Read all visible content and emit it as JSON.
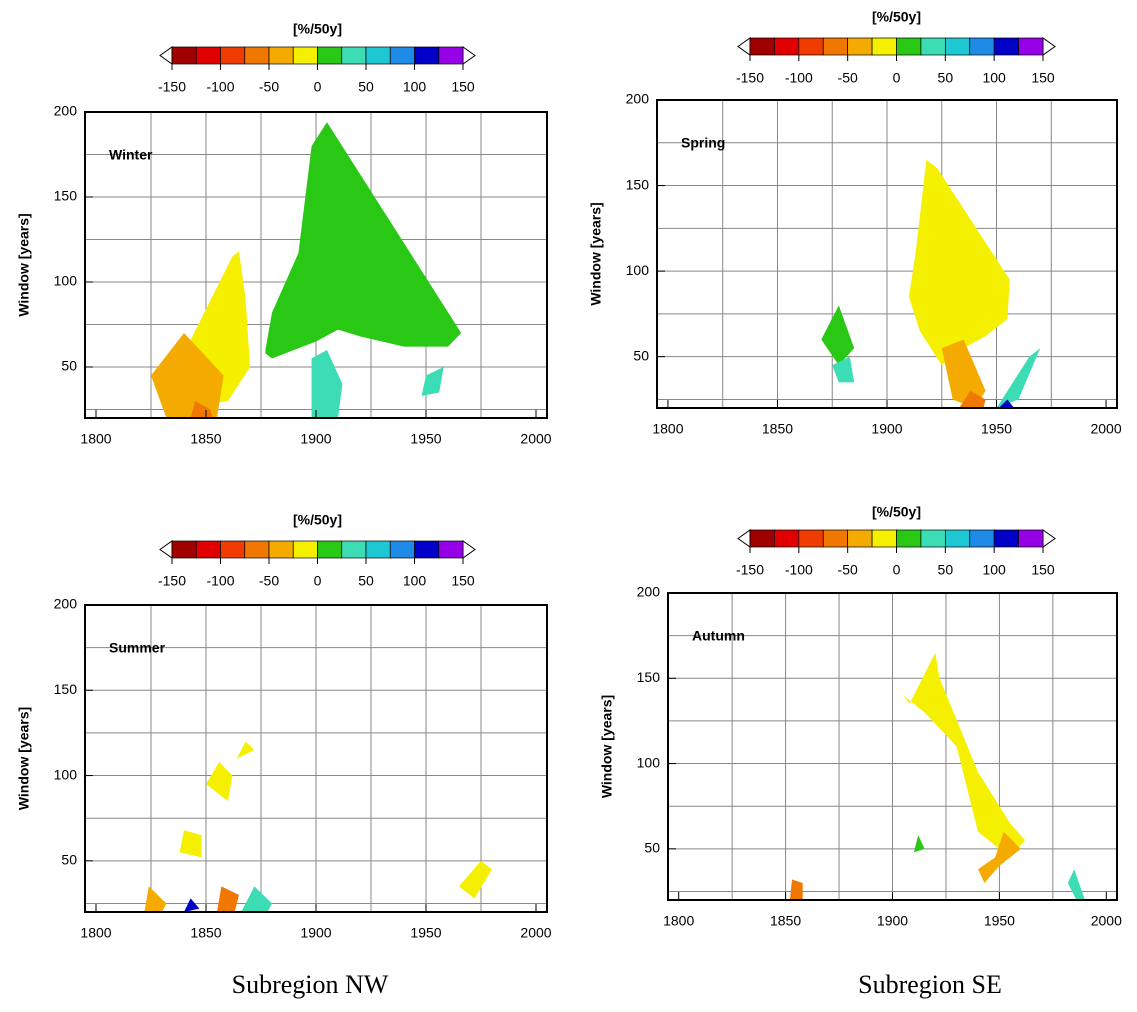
{
  "colorbar": {
    "title": "[%/50y]",
    "lim": [
      -150,
      150
    ],
    "ticks": [
      -150,
      -100,
      -50,
      0,
      50,
      100,
      150
    ],
    "colors": [
      "#a00000",
      "#e00000",
      "#f03c00",
      "#f07800",
      "#f5aa00",
      "#f5f000",
      "#28c814",
      "#3cdcb4",
      "#1ec8d2",
      "#1e8ce6",
      "#0000c8",
      "#9600e6"
    ]
  },
  "captions": [
    "Subregion NW",
    "Subregion SE"
  ],
  "chart_data": [
    {
      "type": "heatmap",
      "label": "Winter",
      "ylabel": "Window [years]",
      "xlim": [
        1795,
        2005
      ],
      "ylim": [
        20,
        200
      ],
      "xticks": [
        1800,
        1850,
        1900,
        1950,
        2000
      ],
      "yticks": [
        50,
        100,
        150,
        200
      ],
      "xgrid": [
        1825,
        1850,
        1875,
        1900,
        1925,
        1950,
        1975
      ],
      "ygrid": [
        25,
        50,
        75,
        100,
        125,
        150,
        175
      ],
      "regions": [
        {
          "value": 10,
          "x": [
            1877,
            1880,
            1892,
            1898,
            1905,
            1966,
            1960,
            1940,
            1920,
            1910,
            1900,
            1880,
            1877
          ],
          "y": [
            60,
            82,
            117,
            180,
            194,
            70,
            62,
            62,
            68,
            72,
            65,
            55,
            58
          ]
        },
        {
          "value": -15,
          "x": [
            1833,
            1862,
            1865,
            1868,
            1870,
            1860,
            1850
          ],
          "y": [
            40,
            115,
            118,
            90,
            50,
            30,
            28
          ]
        },
        {
          "value": -40,
          "x": [
            1825,
            1840,
            1858,
            1855,
            1832
          ],
          "y": [
            45,
            70,
            45,
            20,
            20
          ]
        },
        {
          "value": -75,
          "x": [
            1843,
            1845,
            1852,
            1853
          ],
          "y": [
            20,
            30,
            25,
            20
          ]
        },
        {
          "value": 30,
          "x": [
            1898,
            1905,
            1912,
            1910,
            1898
          ],
          "y": [
            55,
            60,
            40,
            20,
            20
          ]
        },
        {
          "value": 30,
          "x": [
            1950,
            1958,
            1956,
            1948
          ],
          "y": [
            45,
            50,
            35,
            33
          ]
        }
      ]
    },
    {
      "type": "heatmap",
      "label": "Spring",
      "ylabel": "Window [years]",
      "xlim": [
        1795,
        2005
      ],
      "ylim": [
        20,
        200
      ],
      "xticks": [
        1800,
        1850,
        1900,
        1950,
        2000
      ],
      "yticks": [
        50,
        100,
        150,
        200
      ],
      "xgrid": [
        1825,
        1850,
        1875,
        1900,
        1925,
        1950,
        1975
      ],
      "ygrid": [
        25,
        50,
        75,
        100,
        125,
        150,
        175
      ],
      "regions": [
        {
          "value": -15,
          "x": [
            1910,
            1913,
            1918,
            1923,
            1956,
            1955,
            1945,
            1935,
            1925,
            1915
          ],
          "y": [
            85,
            110,
            165,
            160,
            95,
            72,
            62,
            55,
            45,
            65
          ]
        },
        {
          "value": -40,
          "x": [
            1925,
            1935,
            1945,
            1940,
            1930
          ],
          "y": [
            55,
            60,
            30,
            20,
            25
          ]
        },
        {
          "value": -75,
          "x": [
            1933,
            1938,
            1945,
            1944
          ],
          "y": [
            20,
            30,
            25,
            20
          ]
        },
        {
          "value": 10,
          "x": [
            1870,
            1878,
            1885,
            1878
          ],
          "y": [
            60,
            80,
            55,
            45
          ]
        },
        {
          "value": 30,
          "x": [
            1875,
            1883,
            1885,
            1878
          ],
          "y": [
            45,
            50,
            35,
            35
          ]
        },
        {
          "value": 40,
          "x": [
            1950,
            1965,
            1970,
            1960
          ],
          "y": [
            20,
            50,
            55,
            25
          ]
        },
        {
          "value": 110,
          "x": [
            1951,
            1955,
            1958
          ],
          "y": [
            20,
            25,
            20
          ]
        }
      ]
    },
    {
      "type": "heatmap",
      "label": "Summer",
      "ylabel": "Window [years]",
      "xlim": [
        1795,
        2005
      ],
      "ylim": [
        20,
        200
      ],
      "xticks": [
        1800,
        1850,
        1900,
        1950,
        2000
      ],
      "yticks": [
        50,
        100,
        150,
        200
      ],
      "xgrid": [
        1825,
        1850,
        1875,
        1900,
        1925,
        1950,
        1975
      ],
      "ygrid": [
        25,
        50,
        75,
        100,
        125,
        150,
        175
      ],
      "regions": [
        {
          "value": -15,
          "x": [
            1838,
            1840,
            1848,
            1848
          ],
          "y": [
            55,
            68,
            65,
            52
          ]
        },
        {
          "value": -15,
          "x": [
            1850,
            1856,
            1862,
            1860
          ],
          "y": [
            95,
            108,
            100,
            85
          ]
        },
        {
          "value": -15,
          "x": [
            1864,
            1868,
            1872
          ],
          "y": [
            110,
            120,
            115
          ]
        },
        {
          "value": -15,
          "x": [
            1965,
            1975,
            1980,
            1972
          ],
          "y": [
            35,
            50,
            45,
            28
          ]
        },
        {
          "value": -40,
          "x": [
            1822,
            1824,
            1832,
            1830
          ],
          "y": [
            20,
            35,
            25,
            20
          ]
        },
        {
          "value": -75,
          "x": [
            1855,
            1857,
            1865,
            1863
          ],
          "y": [
            20,
            35,
            30,
            20
          ]
        },
        {
          "value": 30,
          "x": [
            1866,
            1872,
            1880,
            1878
          ],
          "y": [
            20,
            35,
            25,
            20
          ]
        },
        {
          "value": 110,
          "x": [
            1840,
            1843,
            1847
          ],
          "y": [
            20,
            28,
            22
          ]
        }
      ]
    },
    {
      "type": "heatmap",
      "label": "Autumn",
      "ylabel": "Window [years]",
      "xlim": [
        1795,
        2005
      ],
      "ylim": [
        20,
        200
      ],
      "xticks": [
        1800,
        1850,
        1900,
        1950,
        2000
      ],
      "yticks": [
        50,
        100,
        150,
        200
      ],
      "xgrid": [
        1825,
        1850,
        1875,
        1900,
        1925,
        1950,
        1975
      ],
      "ygrid": [
        25,
        50,
        75,
        100,
        125,
        150,
        175
      ],
      "regions": [
        {
          "value": -15,
          "x": [
            1905,
            1908,
            1920,
            1922,
            1940,
            1955,
            1962,
            1955,
            1940,
            1930,
            1915
          ],
          "y": [
            140,
            135,
            165,
            150,
            95,
            65,
            55,
            45,
            60,
            110,
            130
          ]
        },
        {
          "value": -40,
          "x": [
            1940,
            1948,
            1952,
            1960,
            1950,
            1943
          ],
          "y": [
            38,
            45,
            60,
            50,
            40,
            30
          ]
        },
        {
          "value": -75,
          "x": [
            1852,
            1853,
            1858,
            1858
          ],
          "y": [
            20,
            32,
            30,
            20
          ]
        },
        {
          "value": 40,
          "x": [
            1982,
            1985,
            1990,
            1986
          ],
          "y": [
            30,
            38,
            20,
            20
          ]
        },
        {
          "value": 10,
          "x": [
            1910,
            1912,
            1915
          ],
          "y": [
            48,
            58,
            50
          ]
        }
      ]
    }
  ]
}
